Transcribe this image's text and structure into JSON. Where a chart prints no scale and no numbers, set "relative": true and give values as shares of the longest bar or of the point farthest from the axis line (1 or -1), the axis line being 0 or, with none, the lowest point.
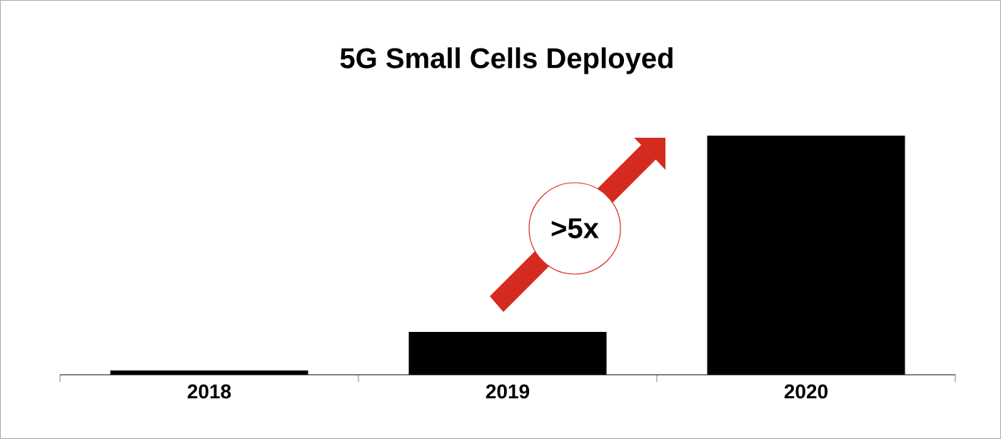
{
  "chart_data": {
    "type": "bar",
    "title": "5G Small Cells Deployed",
    "categories": [
      "2018",
      "2019",
      "2020"
    ],
    "values": [
      0.018,
      0.179,
      1
    ],
    "color": "#000000",
    "relative": true,
    "annotations": [
      ">5x"
    ]
  }
}
